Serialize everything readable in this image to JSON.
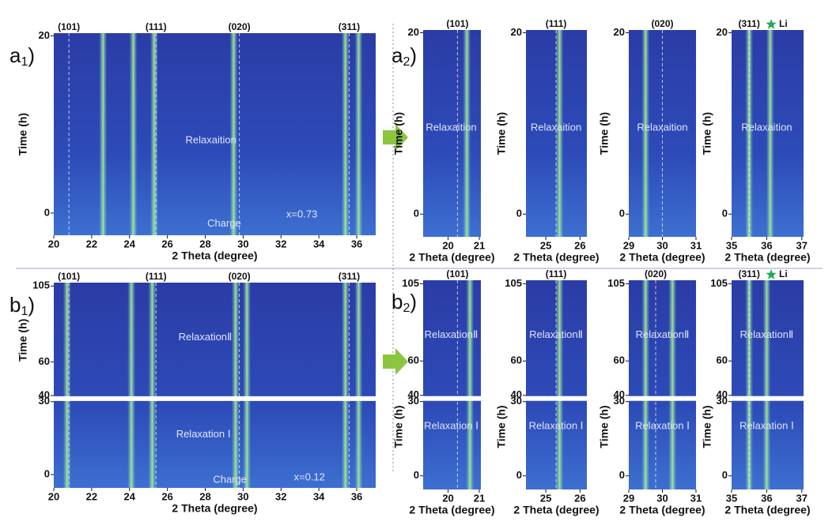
{
  "chart_data": [
    {
      "type": "heatmap",
      "label": {
        "main": "a",
        "sub": "1",
        "end": ")"
      },
      "xlabel": "2 Theta (degree)",
      "ylabel": "Time (h)",
      "xlim": [
        20,
        37
      ],
      "xticks": [
        20,
        22,
        24,
        26,
        28,
        30,
        32,
        34,
        36
      ],
      "ylim": [
        -2.5,
        20.3
      ],
      "yticks": [
        0,
        20
      ],
      "peaks": [
        {
          "text": "(101)",
          "x": 20.8
        },
        {
          "text": "(111)",
          "x": 25.4
        },
        {
          "text": "(020)",
          "x": 29.8
        },
        {
          "text": "(311)",
          "x": 35.6
        }
      ],
      "streaks": [
        22.6,
        24.2,
        25.3,
        29.5,
        35.4,
        36.1
      ],
      "annotations": [
        {
          "text": "Relaxaition",
          "x": 28.3,
          "y": 8.2
        },
        {
          "text": "Charge",
          "x": 29,
          "y": -1.2
        },
        {
          "text": "x=0.73",
          "x": 33.1,
          "y": -0.2,
          "color": "#e0203a"
        }
      ]
    },
    {
      "type": "heatmap",
      "label": {
        "main": "a",
        "sub": "2",
        "end": ")"
      },
      "xlabel": "2 Theta (degree)",
      "ylabel": "Time (h)",
      "xlim": [
        19.2,
        21.05
      ],
      "xticks": [
        20,
        21
      ],
      "ylim": [
        -2.5,
        20.3
      ],
      "yticks": [
        0,
        20
      ],
      "peaks": [
        {
          "text": "(101)",
          "x": 20.3
        }
      ],
      "streaks": [
        20.6
      ],
      "annotations": [
        {
          "text": "Relaxaition",
          "x": 20.1,
          "y": 9.5
        }
      ]
    },
    {
      "type": "heatmap",
      "xlabel": "2 Theta (degree)",
      "ylabel": "Time (h)",
      "xlim": [
        24.42,
        26.2
      ],
      "xticks": [
        25,
        26
      ],
      "ylim": [
        -2.5,
        20.3
      ],
      "yticks": [
        0,
        20
      ],
      "peaks": [
        {
          "text": "(111)",
          "x": 25.3
        }
      ],
      "streaks": [
        25.4
      ],
      "annotations": [
        {
          "text": "Relaxaition",
          "x": 25.3,
          "y": 9.5
        }
      ]
    },
    {
      "type": "heatmap",
      "xlabel": "2 Theta (degree)",
      "ylabel": "Time (h)",
      "xlim": [
        29,
        31
      ],
      "xticks": [
        29,
        30,
        31
      ],
      "ylim": [
        -2.5,
        20.3
      ],
      "yticks": [
        0,
        20
      ],
      "peaks": [
        {
          "text": "(020)",
          "x": 30
        }
      ],
      "streaks": [
        29.5
      ],
      "annotations": [
        {
          "text": "Relaxaition",
          "x": 30,
          "y": 9.5
        }
      ]
    },
    {
      "type": "heatmap",
      "xlabel": "2 Theta (degree)",
      "ylabel": "Time (h)",
      "xlim": [
        35,
        37.05
      ],
      "xticks": [
        35,
        36,
        37
      ],
      "ylim": [
        -2.5,
        20.3
      ],
      "yticks": [
        0,
        20
      ],
      "peaks": [
        {
          "text": "(311)",
          "x": 35.5
        }
      ],
      "legend": "Li",
      "streaks": [
        35.5,
        36.1
      ],
      "annotations": [
        {
          "text": "Relaxaition",
          "x": 36,
          "y": 9.5
        }
      ]
    },
    {
      "type": "heatmap",
      "label": {
        "main": "b",
        "sub": "1",
        "end": ")"
      },
      "xlabel": "2 Theta (degree)",
      "ylabel": "Time (h)",
      "xlim": [
        20,
        37
      ],
      "xticks": [
        20,
        22,
        24,
        26,
        28,
        30,
        32,
        34,
        36
      ],
      "ylim": [
        -5.5,
        107
      ],
      "yticks": [
        0,
        30,
        40,
        60,
        105
      ],
      "ybreak": [
        30,
        40
      ],
      "peaks": [
        {
          "text": "(101)",
          "x": 20.8
        },
        {
          "text": "(111)",
          "x": 25.4
        },
        {
          "text": "(020)",
          "x": 29.8
        },
        {
          "text": "(311)",
          "x": 35.6
        }
      ],
      "streaks": [
        20.7,
        24.1,
        25.2,
        29.6,
        30.2,
        35.4,
        36.1
      ],
      "annotations": [
        {
          "text": "RelaxationⅡ",
          "x": 28,
          "y": 74.5
        },
        {
          "text": "Relaxation Ⅰ",
          "x": 27.9,
          "y": 16.5
        },
        {
          "text": "Charge",
          "x": 29.3,
          "y": -2.3
        },
        {
          "text": "x=0.12",
          "x": 33.5,
          "y": -1.3,
          "color": "#e0203a"
        }
      ]
    },
    {
      "type": "heatmap",
      "label": {
        "main": "b",
        "sub": "2",
        "end": ")"
      },
      "xlabel": "2 Theta (degree)",
      "ylabel": "Time (h)",
      "xlim": [
        19.2,
        21.05
      ],
      "xticks": [
        20,
        21
      ],
      "ylim": [
        -5.5,
        107
      ],
      "yticks": [
        0,
        30,
        40,
        60,
        105
      ],
      "ybreak": [
        30,
        40
      ],
      "peaks": [
        {
          "text": "(101)",
          "x": 20.3
        }
      ],
      "streaks": [
        20.7
      ],
      "annotations": [
        {
          "text": "RelaxationⅡ",
          "x": 20.1,
          "y": 75
        },
        {
          "text": "Relaxation Ⅰ",
          "x": 20.1,
          "y": 20
        }
      ]
    },
    {
      "type": "heatmap",
      "xlabel": "2 Theta (degree)",
      "ylabel": "Time (h)",
      "xlim": [
        24.42,
        26.2
      ],
      "xticks": [
        25,
        26
      ],
      "ylim": [
        -5.5,
        107
      ],
      "yticks": [
        0,
        30,
        40,
        60,
        105
      ],
      "ybreak": [
        30,
        40
      ],
      "peaks": [
        {
          "text": "(111)",
          "x": 25.3
        }
      ],
      "streaks": [
        25.4
      ],
      "annotations": [
        {
          "text": "RelaxationⅡ",
          "x": 25.3,
          "y": 75
        },
        {
          "text": "Relaxation Ⅰ",
          "x": 25.3,
          "y": 20
        }
      ]
    },
    {
      "type": "heatmap",
      "xlabel": "2 Theta (degree)",
      "ylabel": "Time (h)",
      "xlim": [
        29,
        31
      ],
      "xticks": [
        29,
        30,
        31
      ],
      "ylim": [
        -5.5,
        107
      ],
      "yticks": [
        0,
        30,
        40,
        60,
        105
      ],
      "ybreak": [
        30,
        40
      ],
      "peaks": [
        {
          "text": "(020)",
          "x": 29.8
        }
      ],
      "streaks": [
        29.5,
        30.3
      ],
      "annotations": [
        {
          "text": "RelaxationⅡ",
          "x": 30,
          "y": 75
        },
        {
          "text": "Relaxation Ⅰ",
          "x": 30,
          "y": 20
        }
      ]
    },
    {
      "type": "heatmap",
      "xlabel": "2 Theta (degree)",
      "ylabel": "Time (h)",
      "xlim": [
        35,
        37.05
      ],
      "xticks": [
        35,
        36,
        37
      ],
      "ylim": [
        -5.5,
        107
      ],
      "yticks": [
        0,
        30,
        40,
        60,
        105
      ],
      "ybreak": [
        30,
        40
      ],
      "peaks": [
        {
          "text": "(311)",
          "x": 35.5
        }
      ],
      "legend": "Li",
      "streaks": [
        35.5,
        36
      ],
      "annotations": [
        {
          "text": "RelaxationⅡ",
          "x": 36,
          "y": 75
        },
        {
          "text": "Relaxation Ⅰ",
          "x": 36,
          "y": 20
        }
      ]
    }
  ]
}
